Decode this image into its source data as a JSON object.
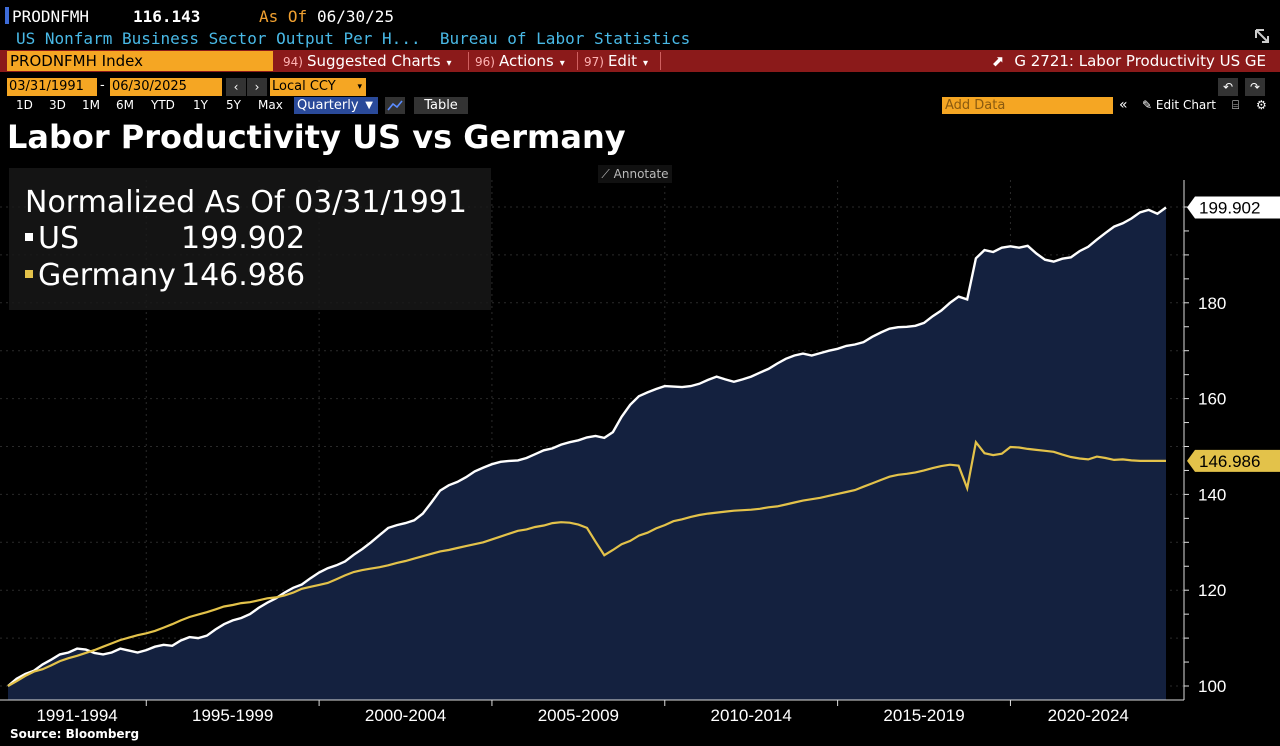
{
  "header": {
    "ticker": "PRODNFMH",
    "price": "116.143",
    "as_of_label": "As Of",
    "as_of_date": "06/30/25",
    "description": "US Nonfarm Business Sector Output Per H...  Bureau of Labor Statistics"
  },
  "toolbar": {
    "security": "PRODNFMH Index",
    "suggested_num": "94)",
    "suggested_label": "Suggested Charts",
    "actions_num": "96)",
    "actions_label": "Actions",
    "edit_num": "97)",
    "edit_label": "Edit",
    "graph_title": "G 2721: Labor Productivity US GE"
  },
  "controls": {
    "start_date": "03/31/1991",
    "end_date": "06/30/2025",
    "currency": "Local CCY",
    "ranges": [
      "1D",
      "3D",
      "1M",
      "6M",
      "YTD",
      "1Y",
      "5Y",
      "Max"
    ],
    "frequency": "Quarterly",
    "table_label": "Table",
    "add_data_placeholder": "Add Data",
    "edit_chart_label": "Edit Chart",
    "annotate_label": "Annotate"
  },
  "colors": {
    "us": "#ffffff",
    "germany": "#e3c24a",
    "area_fill": "#14213f",
    "accent_orange": "#f5a623",
    "menu_red": "#8b1a1a"
  },
  "legend": {
    "title": "Normalized As Of 03/31/1991",
    "us_label": "US",
    "us_value": "199.902",
    "germany_label": "Germany",
    "germany_value": "146.986"
  },
  "source": "Source: Bloomberg",
  "chart_data": {
    "type": "area",
    "title": "Labor Productivity US vs Germany",
    "ylim": [
      100,
      200
    ],
    "yticks": [
      100,
      120,
      140,
      160,
      180
    ],
    "x_groups": [
      "1991-1994",
      "1995-1999",
      "2000-2004",
      "2005-2009",
      "2010-2014",
      "2015-2019",
      "2020-2024"
    ],
    "last_value_labels": [
      "199.902",
      "146.986"
    ],
    "series": [
      {
        "name": "US",
        "start": "1991-Q1",
        "frequency": "quarterly",
        "values": [
          100.0,
          101.5,
          102.5,
          103.2,
          104.5,
          105.5,
          106.6,
          107.0,
          107.8,
          107.6,
          106.9,
          106.6,
          107.0,
          107.8,
          107.4,
          107.0,
          107.5,
          108.2,
          108.6,
          108.4,
          109.5,
          110.2,
          110.0,
          110.5,
          111.8,
          112.9,
          113.7,
          114.2,
          115.0,
          116.3,
          117.4,
          118.3,
          119.5,
          120.5,
          121.2,
          122.5,
          123.7,
          124.6,
          125.2,
          126.0,
          127.4,
          128.6,
          130.0,
          131.5,
          133.0,
          133.6,
          134.0,
          134.6,
          136.0,
          138.3,
          140.8,
          141.9,
          142.6,
          143.6,
          144.8,
          145.6,
          146.3,
          146.8,
          147.0,
          147.1,
          147.6,
          148.4,
          149.2,
          149.6,
          150.4,
          150.9,
          151.3,
          151.9,
          152.2,
          151.8,
          153.0,
          156.2,
          158.7,
          160.5,
          161.3,
          162.0,
          162.6,
          162.5,
          162.4,
          162.6,
          163.1,
          163.9,
          164.6,
          164.0,
          163.5,
          164.0,
          164.6,
          165.4,
          166.2,
          167.3,
          168.3,
          169.0,
          169.4,
          169.0,
          169.5,
          170.0,
          170.4,
          171.0,
          171.3,
          171.8,
          172.9,
          173.8,
          174.6,
          174.9,
          175.0,
          175.2,
          175.8,
          177.2,
          178.4,
          180.0,
          181.3,
          180.7,
          189.3,
          191.0,
          190.6,
          191.5,
          191.8,
          191.5,
          191.9,
          190.3,
          189.0,
          188.6,
          189.2,
          189.5,
          190.8,
          191.7,
          193.2,
          194.6,
          195.9,
          196.6,
          197.6,
          198.9,
          199.4,
          198.6,
          199.902
        ]
      },
      {
        "name": "Germany",
        "start": "1991-Q1",
        "frequency": "quarterly",
        "values": [
          100.0,
          101.0,
          102.1,
          103.0,
          103.5,
          104.3,
          105.2,
          105.8,
          106.3,
          106.9,
          107.5,
          108.2,
          108.9,
          109.6,
          110.1,
          110.6,
          111.0,
          111.5,
          112.2,
          112.9,
          113.7,
          114.4,
          114.9,
          115.4,
          116.0,
          116.6,
          116.9,
          117.3,
          117.5,
          117.9,
          118.3,
          118.5,
          118.9,
          119.5,
          120.3,
          120.7,
          121.1,
          121.5,
          122.3,
          123.1,
          123.8,
          124.2,
          124.5,
          124.8,
          125.2,
          125.7,
          126.1,
          126.6,
          127.1,
          127.6,
          128.1,
          128.4,
          128.8,
          129.2,
          129.6,
          130.0,
          130.6,
          131.2,
          131.8,
          132.4,
          132.7,
          133.2,
          133.5,
          134.0,
          134.2,
          134.1,
          133.7,
          133.0,
          130.1,
          127.3,
          128.4,
          129.6,
          130.3,
          131.4,
          132.0,
          132.9,
          133.6,
          134.4,
          134.8,
          135.3,
          135.7,
          136.0,
          136.2,
          136.4,
          136.6,
          136.7,
          136.8,
          137.0,
          137.3,
          137.5,
          137.9,
          138.3,
          138.7,
          139.0,
          139.3,
          139.7,
          140.1,
          140.5,
          140.9,
          141.6,
          142.3,
          143.0,
          143.7,
          144.1,
          144.3,
          144.6,
          145.0,
          145.5,
          145.9,
          146.2,
          146.0,
          141.3,
          150.9,
          148.6,
          148.2,
          148.5,
          149.9,
          149.8,
          149.5,
          149.3,
          149.1,
          148.9,
          148.3,
          147.8,
          147.5,
          147.3,
          147.9,
          147.6,
          147.2,
          147.3,
          147.1,
          147.0,
          146.986,
          146.986,
          146.986
        ]
      }
    ]
  }
}
